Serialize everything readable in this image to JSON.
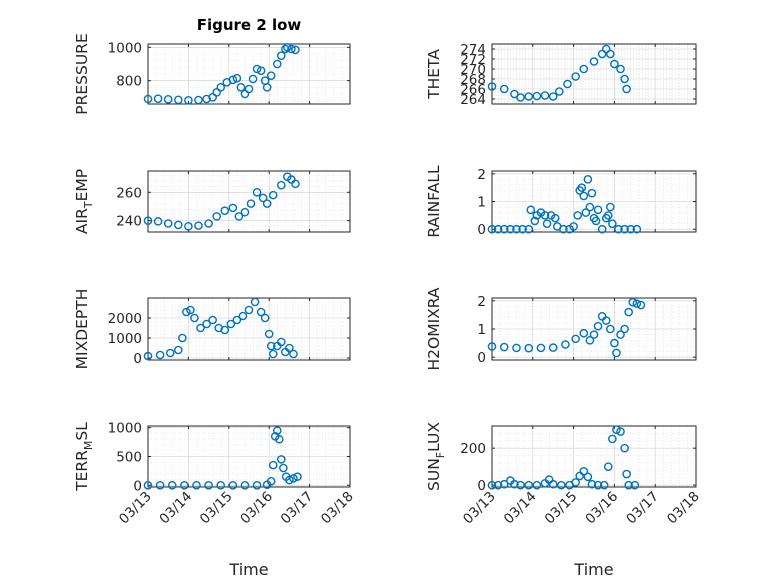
{
  "chart_data": [
    {
      "type": "scatter",
      "title": "Figure 2 low",
      "ylabel": "PRESSURE",
      "xlim": [
        "03/13",
        "03/18"
      ],
      "ylim": [
        660,
        1020
      ],
      "yticks": [
        800,
        1000
      ],
      "xticks": [
        "03/13",
        "03/14",
        "03/15",
        "03/16",
        "03/17",
        "03/18"
      ],
      "show_xticklabels": false,
      "grid": true,
      "marker_color": "#0072BD",
      "points": [
        [
          0,
          690
        ],
        [
          0.25,
          692
        ],
        [
          0.5,
          688
        ],
        [
          0.75,
          685
        ],
        [
          1.0,
          682
        ],
        [
          1.25,
          684
        ],
        [
          1.45,
          690
        ],
        [
          1.6,
          700
        ],
        [
          1.7,
          730
        ],
        [
          1.8,
          760
        ],
        [
          1.95,
          790
        ],
        [
          2.1,
          805
        ],
        [
          2.2,
          815
        ],
        [
          2.3,
          760
        ],
        [
          2.4,
          720
        ],
        [
          2.5,
          750
        ],
        [
          2.6,
          810
        ],
        [
          2.7,
          870
        ],
        [
          2.8,
          860
        ],
        [
          2.9,
          800
        ],
        [
          2.95,
          760
        ],
        [
          3.05,
          830
        ],
        [
          3.2,
          900
        ],
        [
          3.3,
          950
        ],
        [
          3.4,
          990
        ],
        [
          3.45,
          1000
        ],
        [
          3.55,
          990
        ],
        [
          3.65,
          985
        ]
      ]
    },
    {
      "type": "scatter",
      "title": "",
      "ylabel": "THETA",
      "xlim": [
        "03/13",
        "03/18"
      ],
      "ylim": [
        263,
        275
      ],
      "yticks": [
        264,
        266,
        268,
        270,
        272,
        274
      ],
      "xticks": [
        "03/13",
        "03/14",
        "03/15",
        "03/16",
        "03/17",
        "03/18"
      ],
      "show_xticklabels": false,
      "grid": true,
      "marker_color": "#0072BD",
      "points": [
        [
          0,
          266.5
        ],
        [
          0.3,
          266
        ],
        [
          0.55,
          265
        ],
        [
          0.7,
          264.3
        ],
        [
          0.9,
          264.5
        ],
        [
          1.1,
          264.6
        ],
        [
          1.3,
          264.7
        ],
        [
          1.5,
          264.5
        ],
        [
          1.65,
          265.5
        ],
        [
          1.85,
          267
        ],
        [
          2.05,
          268.5
        ],
        [
          2.25,
          270
        ],
        [
          2.5,
          271.5
        ],
        [
          2.7,
          273
        ],
        [
          2.8,
          274
        ],
        [
          2.9,
          273
        ],
        [
          3.0,
          271
        ],
        [
          3.15,
          270
        ],
        [
          3.25,
          268
        ],
        [
          3.3,
          266
        ]
      ]
    },
    {
      "type": "scatter",
      "title": "",
      "ylabel": "AIR_TEMP",
      "xlim": [
        "03/13",
        "03/18"
      ],
      "ylim": [
        232,
        275
      ],
      "yticks": [
        240,
        260
      ],
      "xticks": [
        "03/13",
        "03/14",
        "03/15",
        "03/16",
        "03/17",
        "03/18"
      ],
      "show_xticklabels": false,
      "grid": true,
      "marker_color": "#0072BD",
      "points": [
        [
          0,
          240
        ],
        [
          0.25,
          239.5
        ],
        [
          0.5,
          238
        ],
        [
          0.75,
          237
        ],
        [
          1.0,
          236
        ],
        [
          1.25,
          236.5
        ],
        [
          1.5,
          238
        ],
        [
          1.7,
          243
        ],
        [
          1.9,
          247
        ],
        [
          2.1,
          249
        ],
        [
          2.25,
          243
        ],
        [
          2.4,
          246
        ],
        [
          2.55,
          252
        ],
        [
          2.7,
          260
        ],
        [
          2.85,
          256
        ],
        [
          2.95,
          252
        ],
        [
          3.1,
          258
        ],
        [
          3.3,
          265
        ],
        [
          3.45,
          271
        ],
        [
          3.55,
          269
        ],
        [
          3.65,
          266
        ]
      ]
    },
    {
      "type": "scatter",
      "title": "",
      "ylabel": "RAINFALL",
      "xlim": [
        "03/13",
        "03/18"
      ],
      "ylim": [
        -0.1,
        2.1
      ],
      "yticks": [
        0,
        1,
        2
      ],
      "xticks": [
        "03/13",
        "03/14",
        "03/15",
        "03/16",
        "03/17",
        "03/18"
      ],
      "show_xticklabels": false,
      "grid": true,
      "marker_color": "#0072BD",
      "points": [
        [
          0,
          0
        ],
        [
          0.15,
          0
        ],
        [
          0.3,
          0
        ],
        [
          0.45,
          0
        ],
        [
          0.6,
          0
        ],
        [
          0.75,
          0
        ],
        [
          0.9,
          0
        ],
        [
          0.95,
          0.7
        ],
        [
          1.05,
          0.3
        ],
        [
          1.1,
          0.5
        ],
        [
          1.2,
          0.6
        ],
        [
          1.3,
          0.5
        ],
        [
          1.35,
          0.2
        ],
        [
          1.45,
          0.5
        ],
        [
          1.55,
          0.4
        ],
        [
          1.6,
          0.1
        ],
        [
          1.75,
          0
        ],
        [
          1.9,
          0
        ],
        [
          2.0,
          0.1
        ],
        [
          2.1,
          0.5
        ],
        [
          2.15,
          1.4
        ],
        [
          2.2,
          1.5
        ],
        [
          2.25,
          1.2
        ],
        [
          2.3,
          0.6
        ],
        [
          2.35,
          1.8
        ],
        [
          2.4,
          0.8
        ],
        [
          2.45,
          1.3
        ],
        [
          2.5,
          0.4
        ],
        [
          2.55,
          0.3
        ],
        [
          2.6,
          0.7
        ],
        [
          2.7,
          0
        ],
        [
          2.8,
          0.4
        ],
        [
          2.85,
          0.5
        ],
        [
          2.9,
          0.8
        ],
        [
          2.95,
          0.2
        ],
        [
          3.1,
          0
        ],
        [
          3.25,
          0
        ],
        [
          3.4,
          0
        ],
        [
          3.55,
          0
        ]
      ]
    },
    {
      "type": "scatter",
      "title": "",
      "ylabel": "MIXDEPTH",
      "xlim": [
        "03/13",
        "03/18"
      ],
      "ylim": [
        -100,
        3000
      ],
      "yticks": [
        0,
        1000,
        2000
      ],
      "xticks": [
        "03/13",
        "03/14",
        "03/15",
        "03/16",
        "03/17",
        "03/18"
      ],
      "show_xticklabels": false,
      "grid": true,
      "marker_color": "#0072BD",
      "points": [
        [
          0,
          100
        ],
        [
          0.3,
          150
        ],
        [
          0.55,
          250
        ],
        [
          0.75,
          400
        ],
        [
          0.85,
          1000
        ],
        [
          0.95,
          2300
        ],
        [
          1.05,
          2400
        ],
        [
          1.15,
          2000
        ],
        [
          1.3,
          1500
        ],
        [
          1.45,
          1700
        ],
        [
          1.6,
          1900
        ],
        [
          1.75,
          1500
        ],
        [
          1.9,
          1400
        ],
        [
          2.05,
          1700
        ],
        [
          2.2,
          1900
        ],
        [
          2.35,
          2100
        ],
        [
          2.5,
          2400
        ],
        [
          2.65,
          2800
        ],
        [
          2.8,
          2300
        ],
        [
          2.9,
          2000
        ],
        [
          3.0,
          1200
        ],
        [
          3.05,
          600
        ],
        [
          3.1,
          200
        ],
        [
          3.2,
          600
        ],
        [
          3.3,
          800
        ],
        [
          3.4,
          300
        ],
        [
          3.5,
          500
        ],
        [
          3.6,
          200
        ]
      ]
    },
    {
      "type": "scatter",
      "title": "",
      "ylabel": "H2OMIXRA",
      "xlim": [
        "03/13",
        "03/18"
      ],
      "ylim": [
        -0.1,
        2.1
      ],
      "yticks": [
        0,
        1,
        2
      ],
      "xticks": [
        "03/13",
        "03/14",
        "03/15",
        "03/16",
        "03/17",
        "03/18"
      ],
      "show_xticklabels": false,
      "grid": true,
      "marker_color": "#0072BD",
      "points": [
        [
          0,
          0.38
        ],
        [
          0.3,
          0.36
        ],
        [
          0.6,
          0.33
        ],
        [
          0.9,
          0.32
        ],
        [
          1.2,
          0.33
        ],
        [
          1.5,
          0.34
        ],
        [
          1.8,
          0.45
        ],
        [
          2.05,
          0.65
        ],
        [
          2.25,
          0.85
        ],
        [
          2.4,
          0.6
        ],
        [
          2.5,
          0.8
        ],
        [
          2.6,
          1.1
        ],
        [
          2.7,
          1.45
        ],
        [
          2.8,
          1.3
        ],
        [
          2.9,
          1.0
        ],
        [
          3.0,
          0.5
        ],
        [
          3.05,
          0.15
        ],
        [
          3.15,
          0.8
        ],
        [
          3.25,
          1.0
        ],
        [
          3.35,
          1.6
        ],
        [
          3.45,
          1.95
        ],
        [
          3.55,
          1.9
        ],
        [
          3.65,
          1.85
        ]
      ]
    },
    {
      "type": "scatter",
      "title": "",
      "ylabel": "TERR_MSL",
      "xlim": [
        "03/13",
        "03/18"
      ],
      "ylim": [
        -30,
        1030
      ],
      "yticks": [
        0,
        500,
        1000
      ],
      "xticks": [
        "03/13",
        "03/14",
        "03/15",
        "03/16",
        "03/17",
        "03/18"
      ],
      "xticklabels": [
        "03/13",
        "03/14",
        "03/15",
        "03/16",
        "03/17",
        "03/18"
      ],
      "show_xticklabels": true,
      "xlabel": "Time",
      "grid": true,
      "marker_color": "#0072BD",
      "points": [
        [
          0,
          0
        ],
        [
          0.3,
          0
        ],
        [
          0.6,
          0
        ],
        [
          0.9,
          0
        ],
        [
          1.2,
          0
        ],
        [
          1.5,
          0
        ],
        [
          1.8,
          0
        ],
        [
          2.1,
          0
        ],
        [
          2.4,
          0
        ],
        [
          2.7,
          0
        ],
        [
          2.95,
          10
        ],
        [
          3.05,
          70
        ],
        [
          3.1,
          350
        ],
        [
          3.15,
          850
        ],
        [
          3.2,
          950
        ],
        [
          3.25,
          800
        ],
        [
          3.3,
          450
        ],
        [
          3.35,
          300
        ],
        [
          3.42,
          150
        ],
        [
          3.5,
          90
        ],
        [
          3.6,
          120
        ],
        [
          3.7,
          150
        ]
      ]
    },
    {
      "type": "scatter",
      "title": "",
      "ylabel": "SUN_FLUX",
      "xlim": [
        "03/13",
        "03/18"
      ],
      "ylim": [
        -10,
        320
      ],
      "yticks": [
        0,
        200
      ],
      "xticks": [
        "03/13",
        "03/14",
        "03/15",
        "03/16",
        "03/17",
        "03/18"
      ],
      "xticklabels": [
        "03/13",
        "03/14",
        "03/15",
        "03/16",
        "03/17",
        "03/18"
      ],
      "show_xticklabels": true,
      "xlabel": "Time",
      "grid": true,
      "marker_color": "#0072BD",
      "points": [
        [
          0,
          0
        ],
        [
          0.15,
          0
        ],
        [
          0.3,
          5
        ],
        [
          0.45,
          25
        ],
        [
          0.55,
          5
        ],
        [
          0.7,
          0
        ],
        [
          0.9,
          0
        ],
        [
          1.1,
          0
        ],
        [
          1.3,
          10
        ],
        [
          1.4,
          30
        ],
        [
          1.5,
          5
        ],
        [
          1.7,
          0
        ],
        [
          1.9,
          0
        ],
        [
          2.05,
          15
        ],
        [
          2.15,
          50
        ],
        [
          2.25,
          75
        ],
        [
          2.35,
          45
        ],
        [
          2.45,
          5
        ],
        [
          2.6,
          0
        ],
        [
          2.75,
          0
        ],
        [
          2.85,
          100
        ],
        [
          2.95,
          250
        ],
        [
          3.05,
          300
        ],
        [
          3.15,
          290
        ],
        [
          3.25,
          200
        ],
        [
          3.3,
          60
        ],
        [
          3.35,
          0
        ],
        [
          3.5,
          0
        ]
      ]
    }
  ]
}
